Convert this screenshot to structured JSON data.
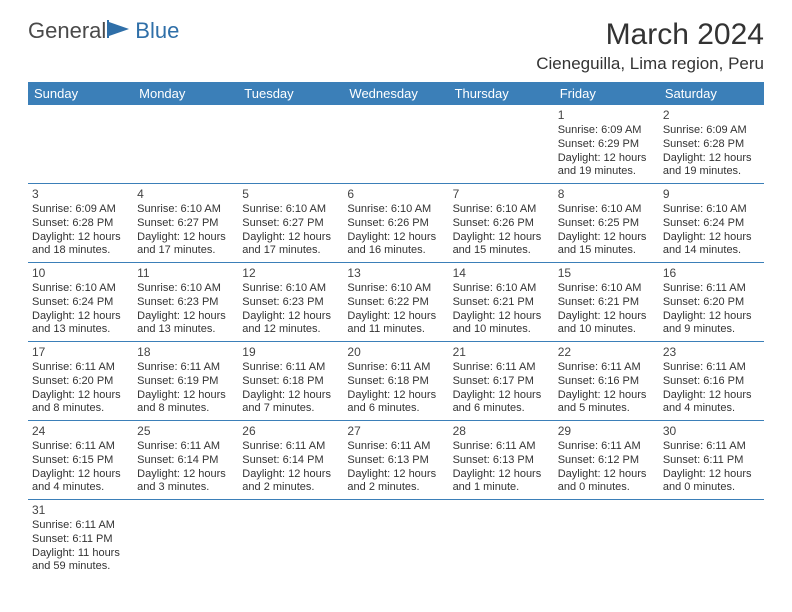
{
  "logo": {
    "text1": "General",
    "text2": "Blue"
  },
  "title": "March 2024",
  "location": "Cieneguilla, Lima region, Peru",
  "colors": {
    "header_bg": "#3b7fb8",
    "header_text": "#ffffff",
    "border": "#3b7fb8",
    "logo_general": "#4a4a4a",
    "logo_blue": "#2f6fa8"
  },
  "dow": [
    "Sunday",
    "Monday",
    "Tuesday",
    "Wednesday",
    "Thursday",
    "Friday",
    "Saturday"
  ],
  "weeks": [
    [
      null,
      null,
      null,
      null,
      null,
      {
        "d": "1",
        "sr": "6:09 AM",
        "ss": "6:29 PM",
        "dl": "12 hours and 19 minutes."
      },
      {
        "d": "2",
        "sr": "6:09 AM",
        "ss": "6:28 PM",
        "dl": "12 hours and 19 minutes."
      }
    ],
    [
      {
        "d": "3",
        "sr": "6:09 AM",
        "ss": "6:28 PM",
        "dl": "12 hours and 18 minutes."
      },
      {
        "d": "4",
        "sr": "6:10 AM",
        "ss": "6:27 PM",
        "dl": "12 hours and 17 minutes."
      },
      {
        "d": "5",
        "sr": "6:10 AM",
        "ss": "6:27 PM",
        "dl": "12 hours and 17 minutes."
      },
      {
        "d": "6",
        "sr": "6:10 AM",
        "ss": "6:26 PM",
        "dl": "12 hours and 16 minutes."
      },
      {
        "d": "7",
        "sr": "6:10 AM",
        "ss": "6:26 PM",
        "dl": "12 hours and 15 minutes."
      },
      {
        "d": "8",
        "sr": "6:10 AM",
        "ss": "6:25 PM",
        "dl": "12 hours and 15 minutes."
      },
      {
        "d": "9",
        "sr": "6:10 AM",
        "ss": "6:24 PM",
        "dl": "12 hours and 14 minutes."
      }
    ],
    [
      {
        "d": "10",
        "sr": "6:10 AM",
        "ss": "6:24 PM",
        "dl": "12 hours and 13 minutes."
      },
      {
        "d": "11",
        "sr": "6:10 AM",
        "ss": "6:23 PM",
        "dl": "12 hours and 13 minutes."
      },
      {
        "d": "12",
        "sr": "6:10 AM",
        "ss": "6:23 PM",
        "dl": "12 hours and 12 minutes."
      },
      {
        "d": "13",
        "sr": "6:10 AM",
        "ss": "6:22 PM",
        "dl": "12 hours and 11 minutes."
      },
      {
        "d": "14",
        "sr": "6:10 AM",
        "ss": "6:21 PM",
        "dl": "12 hours and 10 minutes."
      },
      {
        "d": "15",
        "sr": "6:10 AM",
        "ss": "6:21 PM",
        "dl": "12 hours and 10 minutes."
      },
      {
        "d": "16",
        "sr": "6:11 AM",
        "ss": "6:20 PM",
        "dl": "12 hours and 9 minutes."
      }
    ],
    [
      {
        "d": "17",
        "sr": "6:11 AM",
        "ss": "6:20 PM",
        "dl": "12 hours and 8 minutes."
      },
      {
        "d": "18",
        "sr": "6:11 AM",
        "ss": "6:19 PM",
        "dl": "12 hours and 8 minutes."
      },
      {
        "d": "19",
        "sr": "6:11 AM",
        "ss": "6:18 PM",
        "dl": "12 hours and 7 minutes."
      },
      {
        "d": "20",
        "sr": "6:11 AM",
        "ss": "6:18 PM",
        "dl": "12 hours and 6 minutes."
      },
      {
        "d": "21",
        "sr": "6:11 AM",
        "ss": "6:17 PM",
        "dl": "12 hours and 6 minutes."
      },
      {
        "d": "22",
        "sr": "6:11 AM",
        "ss": "6:16 PM",
        "dl": "12 hours and 5 minutes."
      },
      {
        "d": "23",
        "sr": "6:11 AM",
        "ss": "6:16 PM",
        "dl": "12 hours and 4 minutes."
      }
    ],
    [
      {
        "d": "24",
        "sr": "6:11 AM",
        "ss": "6:15 PM",
        "dl": "12 hours and 4 minutes."
      },
      {
        "d": "25",
        "sr": "6:11 AM",
        "ss": "6:14 PM",
        "dl": "12 hours and 3 minutes."
      },
      {
        "d": "26",
        "sr": "6:11 AM",
        "ss": "6:14 PM",
        "dl": "12 hours and 2 minutes."
      },
      {
        "d": "27",
        "sr": "6:11 AM",
        "ss": "6:13 PM",
        "dl": "12 hours and 2 minutes."
      },
      {
        "d": "28",
        "sr": "6:11 AM",
        "ss": "6:13 PM",
        "dl": "12 hours and 1 minute."
      },
      {
        "d": "29",
        "sr": "6:11 AM",
        "ss": "6:12 PM",
        "dl": "12 hours and 0 minutes."
      },
      {
        "d": "30",
        "sr": "6:11 AM",
        "ss": "6:11 PM",
        "dl": "12 hours and 0 minutes."
      }
    ],
    [
      {
        "d": "31",
        "sr": "6:11 AM",
        "ss": "6:11 PM",
        "dl": "11 hours and 59 minutes."
      },
      null,
      null,
      null,
      null,
      null,
      null
    ]
  ],
  "labels": {
    "sunrise": "Sunrise: ",
    "sunset": "Sunset: ",
    "daylight": "Daylight: "
  }
}
